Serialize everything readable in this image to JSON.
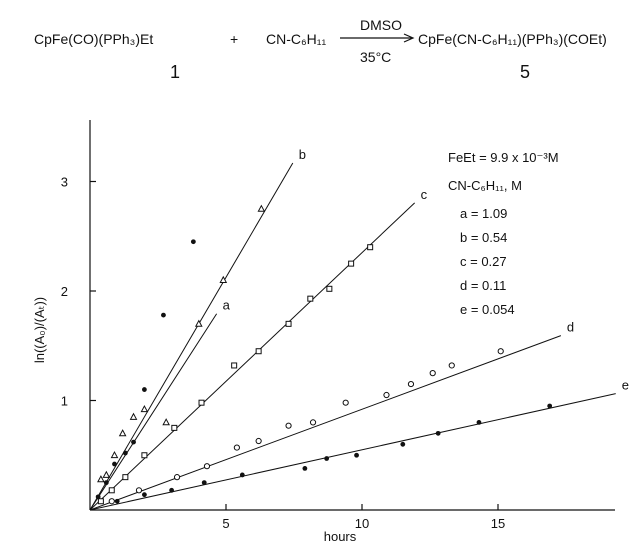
{
  "equation": {
    "reactant1": "CpFe(CO)(PPh₃)Et",
    "reactant1_number": "1",
    "plus": "+",
    "reactant2": "CN-C₆H₁₁",
    "condition_top": "DMSO",
    "condition_bottom": "35°C",
    "product": "CpFe(CN-C₆H₁₁)(PPh₃)(COEt)",
    "product_number": "5"
  },
  "legend": {
    "conc_line": "FeEt = 9.9 x 10⁻³M",
    "header": "CN-C₆H₁₁,  M",
    "entries": [
      "a = 1.09",
      "b = 0.54",
      "c = 0.27",
      "d = 0.11",
      "e = 0.054"
    ]
  },
  "chart_data": {
    "type": "scatter",
    "xlabel": "hours",
    "ylabel": "ln((A₀)/(Aₜ))",
    "xlim": [
      0,
      19.5
    ],
    "ylim": [
      0,
      3.6
    ],
    "xticks": [
      5,
      10,
      15
    ],
    "yticks": [
      1,
      2,
      3
    ],
    "grid": false,
    "series": [
      {
        "name": "a",
        "marker": "filled-circle",
        "slope": 0.385,
        "x": [
          0.3,
          0.6,
          0.9,
          1.3,
          1.6,
          2.0,
          2.7,
          3.8
        ],
        "y": [
          0.12,
          0.25,
          0.42,
          0.52,
          0.62,
          1.1,
          1.78,
          2.45
        ]
      },
      {
        "name": "b",
        "marker": "triangle",
        "slope": 0.425,
        "x": [
          0.4,
          0.6,
          0.9,
          1.2,
          1.6,
          2.0,
          2.8,
          4.0,
          4.9,
          6.3
        ],
        "y": [
          0.28,
          0.32,
          0.5,
          0.7,
          0.85,
          0.92,
          0.8,
          1.7,
          2.1,
          2.75
        ]
      },
      {
        "name": "c",
        "marker": "square",
        "slope": 0.235,
        "x": [
          0.4,
          0.8,
          1.3,
          2.0,
          3.1,
          4.1,
          5.3,
          6.2,
          7.3,
          8.1,
          8.8,
          9.6,
          10.3
        ],
        "y": [
          0.08,
          0.18,
          0.3,
          0.5,
          0.75,
          0.98,
          1.32,
          1.45,
          1.7,
          1.93,
          2.02,
          2.25,
          2.4
        ]
      },
      {
        "name": "d",
        "marker": "open-circle",
        "slope": 0.092,
        "x": [
          0.8,
          1.8,
          3.2,
          4.3,
          5.4,
          6.2,
          7.3,
          8.2,
          9.4,
          10.9,
          11.8,
          12.6,
          13.3,
          15.1
        ],
        "y": [
          0.08,
          0.18,
          0.3,
          0.4,
          0.57,
          0.63,
          0.77,
          0.8,
          0.98,
          1.05,
          1.15,
          1.25,
          1.32,
          1.45
        ]
      },
      {
        "name": "e",
        "marker": "filled-circle",
        "slope": 0.055,
        "x": [
          1.0,
          2.0,
          3.0,
          4.2,
          5.6,
          7.9,
          8.7,
          9.8,
          11.5,
          12.8,
          14.3,
          16.9
        ],
        "y": [
          0.08,
          0.14,
          0.18,
          0.25,
          0.32,
          0.38,
          0.47,
          0.5,
          0.6,
          0.7,
          0.8,
          0.95
        ]
      }
    ]
  }
}
